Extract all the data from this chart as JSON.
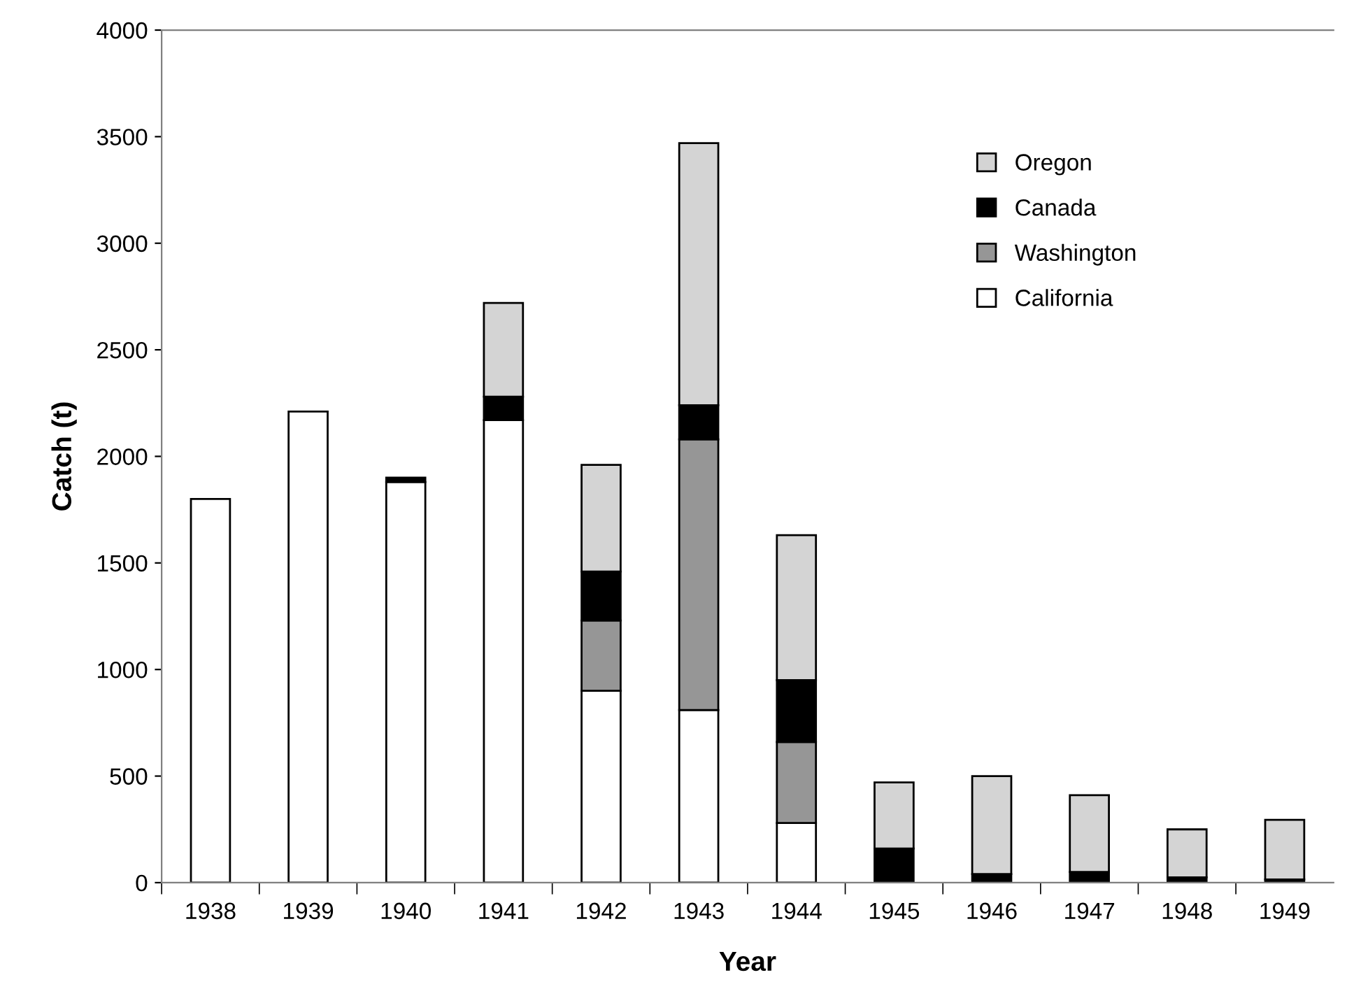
{
  "chart_data": {
    "type": "bar",
    "stacked": true,
    "xlabel": "Year",
    "ylabel": "Catch (t)",
    "categories": [
      "1938",
      "1939",
      "1940",
      "1941",
      "1942",
      "1943",
      "1944",
      "1945",
      "1946",
      "1947",
      "1948",
      "1949"
    ],
    "series": [
      {
        "name": "California",
        "color": "#ffffff",
        "values": [
          1800,
          2210,
          1880,
          2170,
          900,
          810,
          280,
          null,
          null,
          null,
          null,
          null
        ]
      },
      {
        "name": "Washington",
        "color": "#969696",
        "values": [
          null,
          null,
          null,
          null,
          330,
          1270,
          380,
          null,
          null,
          null,
          null,
          null
        ]
      },
      {
        "name": "Canada",
        "color": "#000000",
        "values": [
          null,
          null,
          20,
          110,
          230,
          160,
          290,
          160,
          40,
          50,
          25,
          15
        ]
      },
      {
        "name": "Oregon",
        "color": "#d4d4d4",
        "values": [
          null,
          null,
          null,
          440,
          500,
          1230,
          680,
          310,
          460,
          360,
          225,
          280
        ]
      }
    ],
    "ylim": [
      0,
      4000
    ],
    "yticks": [
      0,
      500,
      1000,
      1500,
      2000,
      2500,
      3000,
      3500,
      4000
    ],
    "grid": false,
    "legend": "top right"
  }
}
